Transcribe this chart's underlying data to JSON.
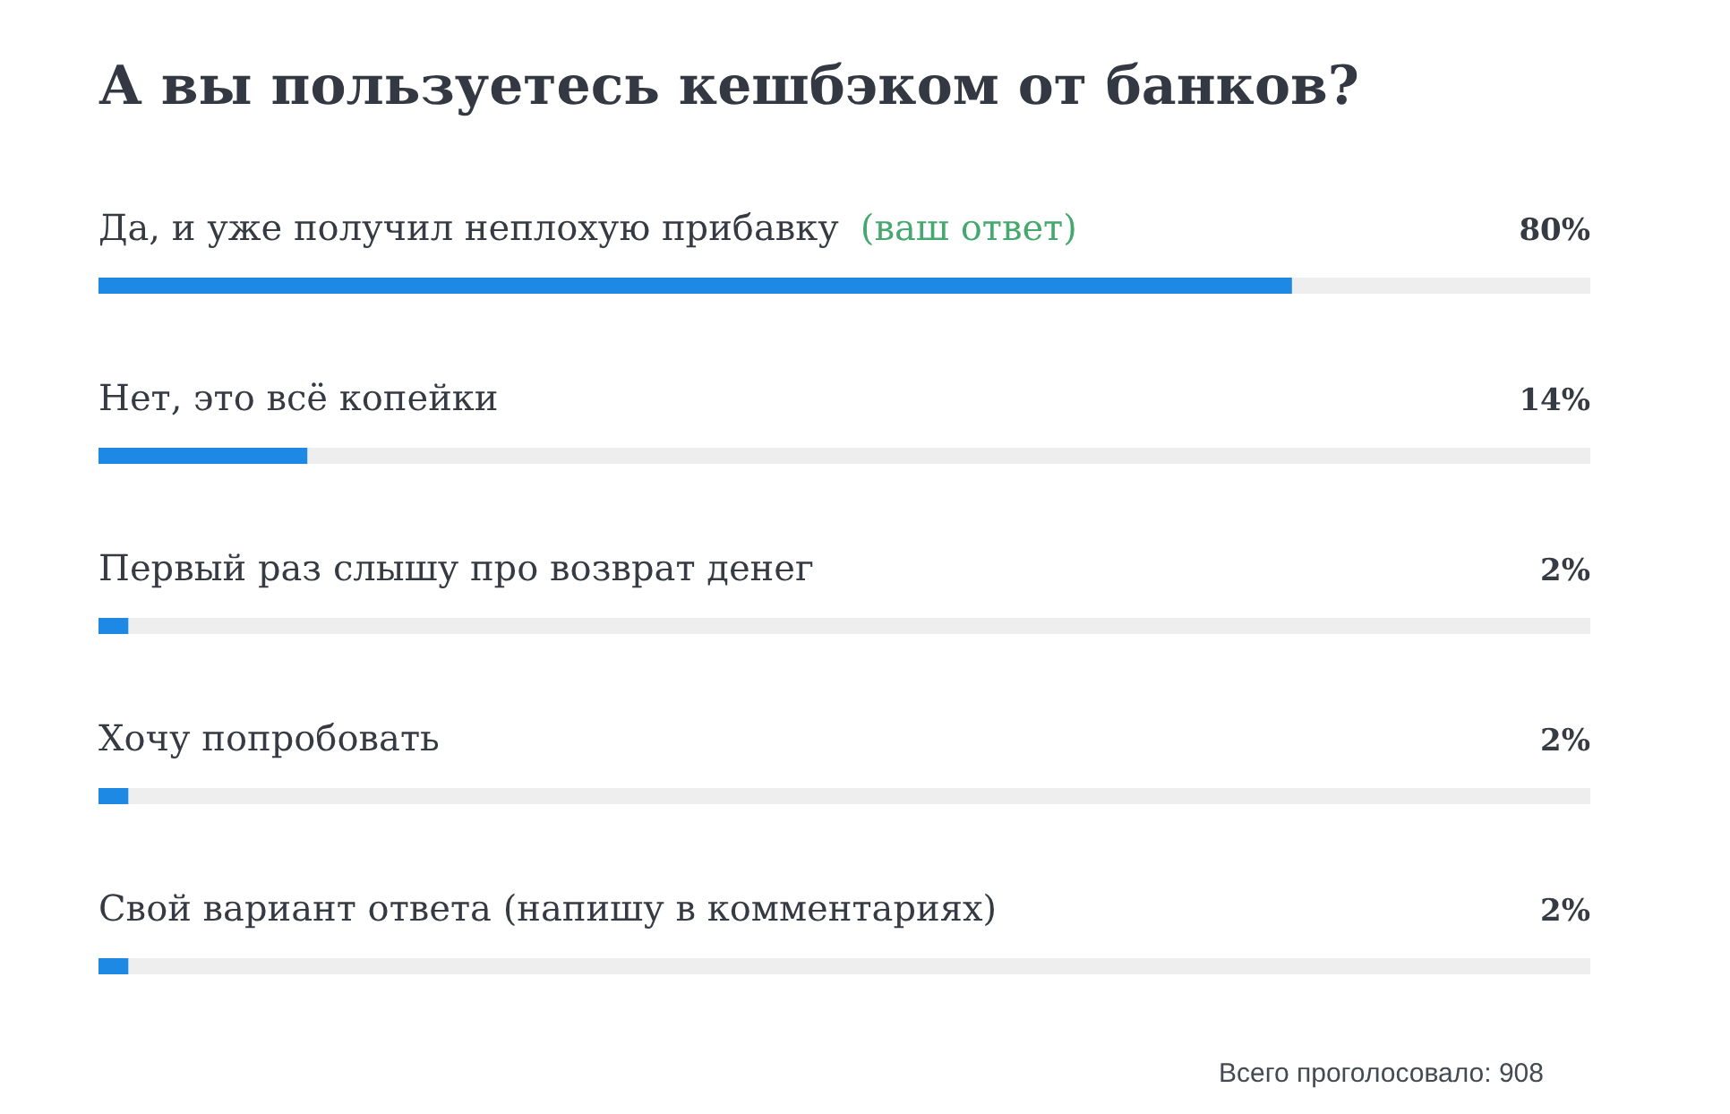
{
  "chart_data": {
    "type": "bar",
    "orientation": "horizontal",
    "title": "А вы пользуетесь кешбэком от банков?",
    "categories": [
      "Да, и уже получил неплохую прибавку",
      "Нет, это всё копейки",
      "Первый раз слышу про возврат денег",
      "Хочу попробовать",
      "Свой вариант ответа (напишу в комментариях)"
    ],
    "values": [
      80,
      14,
      2,
      2,
      2
    ],
    "value_labels": [
      "80%",
      "14%",
      "2%",
      "2%",
      "2%"
    ],
    "color": "#1e88e5",
    "xlim": [
      0,
      100
    ],
    "tick_labels": "y",
    "annotations": [
      {
        "text": "(ваш ответ)",
        "y": "Да, и уже получил неплохую прибавку"
      },
      "Всего проголосовало: 908"
    ]
  }
}
